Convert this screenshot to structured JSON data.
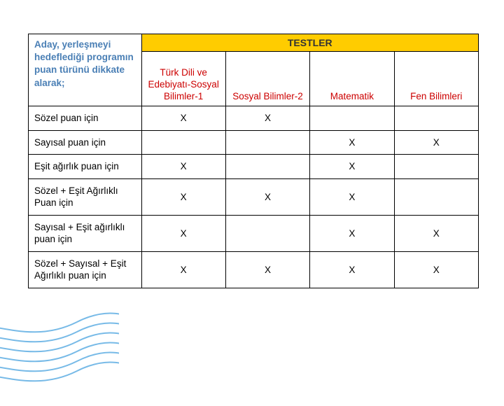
{
  "table": {
    "header_desc": "Aday, yerleşmeyi hedeflediği programın puan türünü dikkate alarak;",
    "testler_label": "TESTLER",
    "columns": [
      "Türk Dili ve Edebiyatı-Sosyal Bilimler-1",
      "Sosyal Bilimler-2",
      "Matematik",
      "Fen Bilimleri"
    ],
    "rows": [
      {
        "label": "Sözel puan için",
        "marks": [
          "X",
          "X",
          "",
          ""
        ]
      },
      {
        "label": "Sayısal puan için",
        "marks": [
          "",
          "",
          "X",
          "X"
        ]
      },
      {
        "label": "Eşit ağırlık puan için",
        "marks": [
          "X",
          "",
          "X",
          ""
        ]
      },
      {
        "label": "Sözel + Eşit Ağırlıklı Puan için",
        "marks": [
          "X",
          "X",
          "X",
          ""
        ]
      },
      {
        "label": "Sayısal + Eşit ağırlıklı puan için",
        "marks": [
          "X",
          "",
          "X",
          "X"
        ]
      },
      {
        "label": "Sözel + Sayısal + Eşit Ağırlıklı puan için",
        "marks": [
          "X",
          "X",
          "X",
          "X"
        ]
      }
    ],
    "colors": {
      "header_desc_text": "#4a7fb5",
      "testler_bg": "#ffcc00",
      "colhead_text": "#cc0000",
      "border": "#000000",
      "cell_bg": "#ffffff"
    },
    "font_sizes": {
      "body": 13.5,
      "testler": 14
    }
  },
  "wave": {
    "stroke": "#4aa3df",
    "stroke_width": 2
  }
}
